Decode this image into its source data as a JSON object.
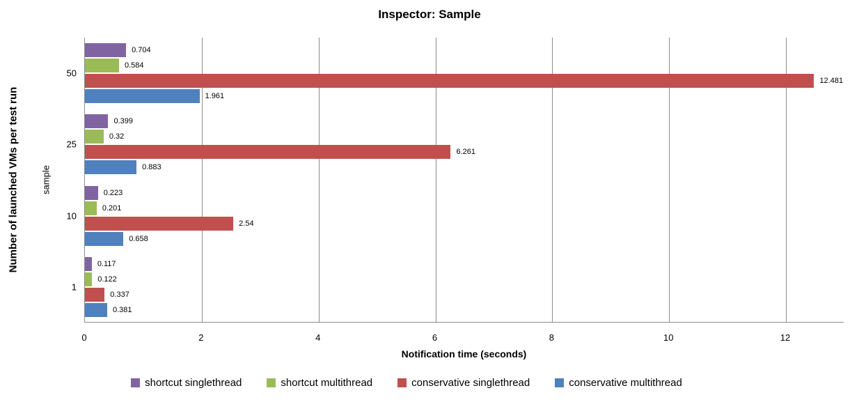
{
  "chart_data": {
    "type": "bar",
    "orientation": "horizontal",
    "title": "Inspector: Sample",
    "xlabel": "Notification time (seconds)",
    "ylabel": "Number of launched VMs per test run",
    "ylabel_secondary": "sample",
    "categories": [
      "50",
      "25",
      "10",
      "1"
    ],
    "series": [
      {
        "name": "shortcut singlethread",
        "color": "#8064A2",
        "values": [
          0.704,
          0.399,
          0.223,
          0.117
        ],
        "value_labels": [
          "0.704",
          "0.399",
          "0.223",
          "0.117"
        ]
      },
      {
        "name": "shortcut multithread",
        "color": "#9BBB59",
        "values": [
          0.584,
          0.32,
          0.201,
          0.122
        ],
        "value_labels": [
          "0.584",
          "0.32",
          "0.201",
          "0.122"
        ]
      },
      {
        "name": "conservative singlethread",
        "color": "#C0504D",
        "values": [
          12.481,
          6.261,
          2.54,
          0.337
        ],
        "value_labels": [
          "12.481",
          "6.261",
          "2.54",
          "0.337"
        ]
      },
      {
        "name": "conservative multithread",
        "color": "#4F81BD",
        "values": [
          1.961,
          0.883,
          0.658,
          0.381
        ],
        "value_labels": [
          "1.961",
          "0.883",
          "0.658",
          "0.381"
        ]
      }
    ],
    "xlim": [
      0,
      13
    ],
    "x_ticks": [
      0,
      2,
      4,
      6,
      8,
      10,
      12
    ],
    "grid": true,
    "legend_position": "bottom",
    "grid_color": "#8C8C8C",
    "background_color": "#FFFFFF"
  }
}
